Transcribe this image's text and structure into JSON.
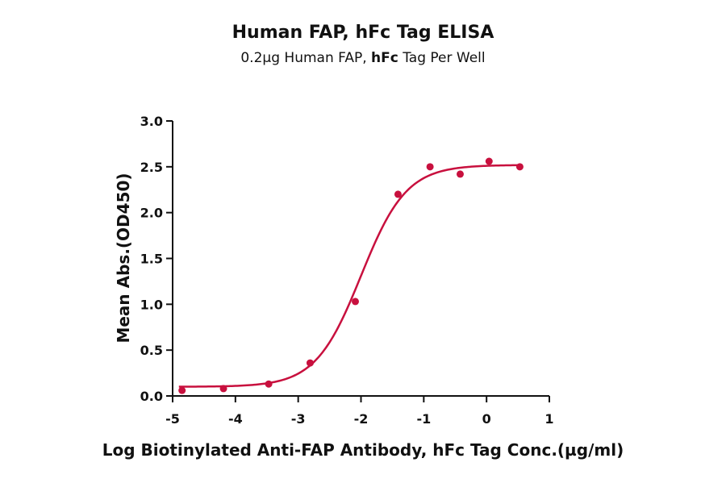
{
  "chart_data": {
    "type": "scatter",
    "title": "Human FAP, hFc Tag ELISA",
    "subtitle_parts": [
      "0.2µg Human FAP, ",
      "hFc",
      " Tag Per Well"
    ],
    "xlabel": "Log Biotinylated Anti-FAP Antibody, hFc Tag Conc.(µg/ml)",
    "ylabel": "Mean Abs.(OD450)",
    "xlim": [
      -5,
      1
    ],
    "ylim": [
      0,
      3.0
    ],
    "x_ticks": [
      -5,
      -4,
      -3,
      -2,
      -1,
      0,
      1
    ],
    "x_tick_labels": [
      "-5",
      "-4",
      "-3",
      "-2",
      "-1",
      "0",
      "1"
    ],
    "y_ticks": [
      0,
      0.5,
      1.0,
      1.5,
      2.0,
      2.5,
      3.0
    ],
    "y_tick_labels": [
      "0.0",
      "0.5",
      "1.0",
      "1.5",
      "2.0",
      "2.5",
      "3.0"
    ],
    "grid": false,
    "point_color": "#c8103e",
    "curve_color": "#c8103e",
    "series": [
      {
        "x": [
          -4.85,
          -4.19,
          -3.47,
          -2.81,
          -2.09,
          -1.41,
          -0.9,
          -0.42,
          0.04,
          0.53
        ],
        "y": [
          0.06,
          0.08,
          0.13,
          0.36,
          1.03,
          2.2,
          2.5,
          2.42,
          2.56,
          2.5
        ]
      }
    ],
    "fit": {
      "model": "4PL",
      "bottom": 0.1,
      "top": 2.52,
      "logEC50": -2.0,
      "hill": 1.2,
      "x_range": [
        -4.9,
        0.55
      ]
    }
  }
}
